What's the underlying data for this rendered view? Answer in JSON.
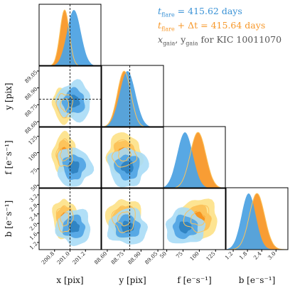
{
  "legend": [
    {
      "prefix": "t",
      "sub": "flare",
      "rest": " = 415.62 days",
      "color": "#3a92d6"
    },
    {
      "prefix": "t",
      "sub": "flare",
      "rest": " + Δt = 415.64 days",
      "color": "#f7982a"
    },
    {
      "prefix": "x",
      "sub": "gaia",
      "rest": ", y",
      "sub2": "gaia",
      "rest2": " for KIC 10011070",
      "color": "#555555"
    }
  ],
  "colors": {
    "blue_dark": "#2c7fbf",
    "blue_mid": "#4fa3e3",
    "blue_light": "#a9dcf6",
    "orange_dark": "#f7921e",
    "orange_mid": "#fcc25a",
    "orange_light": "#fde38c",
    "gaia_line": "#2b2b2b"
  },
  "chart_data": {
    "type": "corner",
    "parameters": [
      {
        "name": "x",
        "label": "x [pix]",
        "range": [
          200.6,
          201.4
        ],
        "ticks": [
          "200.8",
          "201.0",
          "201.2"
        ],
        "tick_values": [
          200.8,
          201.0,
          201.2
        ],
        "gaia": 201.0,
        "blue": {
          "mean": 201.05,
          "sd": 0.09
        },
        "orange": {
          "mean": 200.93,
          "sd": 0.06
        }
      },
      {
        "name": "y",
        "label": "y [pix]",
        "range": [
          88.55,
          89.1
        ],
        "ticks": [
          "88.60",
          "88.75",
          "88.90",
          "89.05"
        ],
        "tick_values": [
          88.6,
          88.75,
          88.9,
          89.05
        ],
        "gaia": 88.8,
        "blue": {
          "mean": 88.78,
          "sd": 0.07
        },
        "orange": {
          "mean": 88.75,
          "sd": 0.06
        }
      },
      {
        "name": "f",
        "label": "f [e⁻s⁻¹]",
        "range": [
          45,
          140
        ],
        "ticks": [
          "50",
          "75",
          "100",
          "125"
        ],
        "tick_values": [
          50,
          75,
          100,
          125
        ],
        "y_ticks": [
          "50",
          "75",
          "100",
          "125"
        ],
        "y_tick_values": [
          50,
          75,
          100,
          125
        ],
        "gaia": null,
        "blue": {
          "mean": 78,
          "sd": 12
        },
        "orange": {
          "mean": 98,
          "sd": 12
        }
      },
      {
        "name": "b",
        "label": "b [e⁻s⁻¹]",
        "range": [
          0.9,
          3.5
        ],
        "ticks": [
          "1.2",
          "1.8",
          "2.4",
          "3.0"
        ],
        "tick_values": [
          1.2,
          1.8,
          2.4,
          3.0
        ],
        "y_ticks": [
          "1.2",
          "1.6",
          "2.0",
          "2.4",
          "2.8",
          "3.2"
        ],
        "y_tick_values": [
          1.2,
          1.6,
          2.0,
          2.4,
          2.8,
          3.2
        ],
        "gaia": null,
        "blue": {
          "mean": 1.85,
          "sd": 0.3
        },
        "orange": {
          "mean": 2.2,
          "sd": 0.32
        }
      }
    ],
    "x_labels": [
      "x [pix]",
      "y [pix]",
      "f [e⁻s⁻¹]",
      "b [e⁻s⁻¹]"
    ],
    "y_labels": [
      "y [pix]",
      "f [e⁻s⁻¹]",
      "b [e⁻s⁻¹]"
    ],
    "row_y_ticks": [
      [
        "88.45",
        "88.60",
        "88.75",
        "88.90",
        "89.05"
      ],
      [
        "50",
        "75",
        "100",
        "125"
      ],
      [
        "1.2",
        "1.6",
        "2.0",
        "2.4",
        "2.8",
        "3.2"
      ]
    ],
    "row_y_tick_values": [
      [
        88.45,
        88.6,
        88.75,
        88.9,
        89.05
      ],
      [
        50,
        75,
        100,
        125
      ],
      [
        1.2,
        1.6,
        2.0,
        2.4,
        2.8,
        3.2
      ]
    ],
    "gaia_marker": {
      "x": 201.0,
      "y": 88.8
    }
  }
}
